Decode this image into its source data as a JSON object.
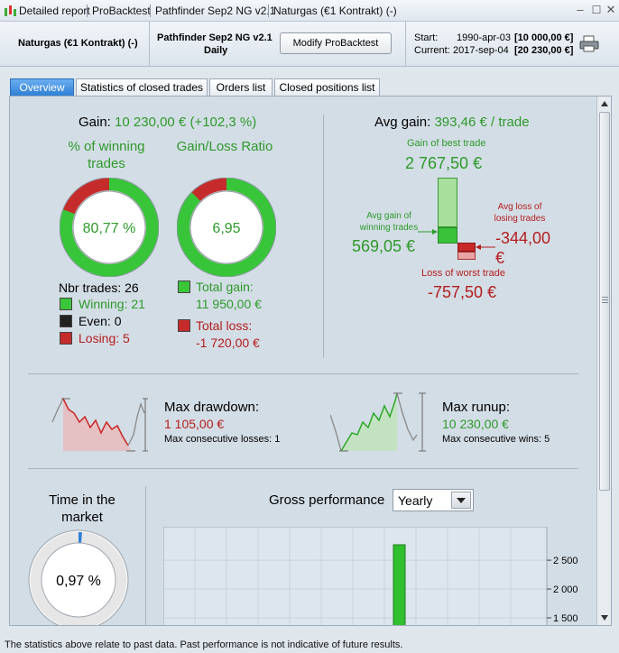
{
  "titlebar": {
    "crumbs": [
      "Detailed report",
      "ProBacktest",
      "Pathfinder Sep2 NG v2.1",
      "Naturgas (€1 Kontrakt) (-)"
    ]
  },
  "header": {
    "instrument": "Naturgas (€1 Kontrakt) (-)",
    "system_name": "Pathfinder Sep2 NG v2.1",
    "timeframe": "Daily",
    "modify_button": "Modify ProBacktest",
    "start_label": "Start:",
    "start_date": "1990-apr-03",
    "start_value": "[10 000,00 €]",
    "current_label": "Current:",
    "current_date": "2017-sep-04",
    "current_value": "[20 230,00 €]"
  },
  "tabs": [
    "Overview",
    "Statistics of closed trades",
    "Orders list",
    "Closed positions list"
  ],
  "overview": {
    "gain_label": "Gain:",
    "gain_value": "10 230,00 € (+102,3 %)",
    "winning_title": "% of winning trades",
    "winning_pct": "80,77 %",
    "winning_fraction": 0.8077,
    "ratio_title": "Gain/Loss Ratio",
    "ratio_value": "6,95",
    "ratio_fraction": 0.874,
    "nbr_trades": "Nbr trades: 26",
    "winning": "Winning: 21",
    "even": "Even: 0",
    "losing": "Losing: 5",
    "total_gain_label": "Total gain:",
    "total_gain_value": "11 950,00 €",
    "total_loss_label": "Total loss:",
    "total_loss_value": "-1 720,00 €",
    "avg_gain_label": "Avg gain:",
    "avg_gain_value": "393,46 € / trade",
    "best_trade_label": "Gain of best trade",
    "best_trade_value": "2 767,50 €",
    "avg_win_label": "Avg gain of winning trades",
    "avg_win_value": "569,05 €",
    "avg_loss_label": "Avg loss of losing trades",
    "avg_loss_value": "-344,00",
    "avg_loss_unit": "€",
    "worst_trade_label": "Loss of worst trade",
    "worst_trade_value": "-757,50 €",
    "max_drawdown_label": "Max drawdown:",
    "max_drawdown_value": "1 105,00 €",
    "max_consec_losses": "Max consecutive losses: 1",
    "max_runup_label": "Max runup:",
    "max_runup_value": "10 230,00 €",
    "max_consec_wins": "Max consecutive wins: 5",
    "time_in_market_title": "Time in the market",
    "time_in_market_value": "0,97 %",
    "time_in_market_fraction": 0.0097,
    "gross_perf_label": "Gross performance",
    "gross_perf_select": "Yearly"
  },
  "colors": {
    "gain": "#2e9a2a",
    "loss": "#b51d1d",
    "accent": "#2f7fd6"
  },
  "footer": "The statistics above relate to past data. Past performance is not indicative of future results.",
  "chart_data": {
    "type": "bar",
    "title": "",
    "ylabel": "",
    "yticks": [
      "2 500",
      "2 000",
      "1 500"
    ],
    "ylim_visible": [
      1500,
      2767.5
    ],
    "values": [
      2767.5
    ]
  }
}
